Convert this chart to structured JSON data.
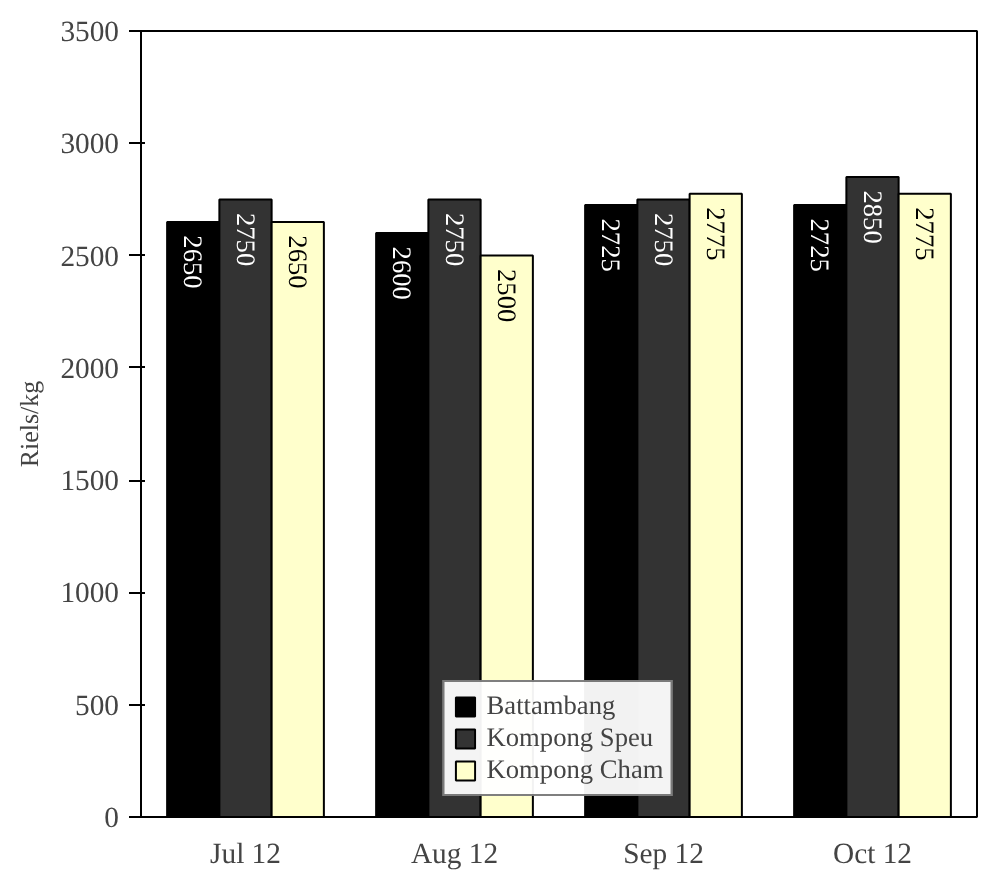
{
  "chart_data": {
    "type": "bar",
    "ylabel": "Riels/kg",
    "categories": [
      "Jul 12",
      "Aug 12",
      "Sep 12",
      "Oct 12"
    ],
    "series": [
      {
        "name": "Battambang",
        "color": "#000000",
        "values": [
          2650,
          2600,
          2725,
          2725
        ]
      },
      {
        "name": "Kompong Speu",
        "color": "#333333",
        "values": [
          2750,
          2750,
          2750,
          2850
        ]
      },
      {
        "name": "Kompong Cham",
        "color": "#ffffcc",
        "values": [
          2650,
          2500,
          2775,
          2775
        ]
      }
    ],
    "ylim": [
      0,
      3500
    ],
    "yticks": [
      0,
      500,
      1000,
      1500,
      2000,
      2500,
      3000,
      3500
    ],
    "grid": false,
    "legend": "bottom",
    "data_labels": true
  }
}
